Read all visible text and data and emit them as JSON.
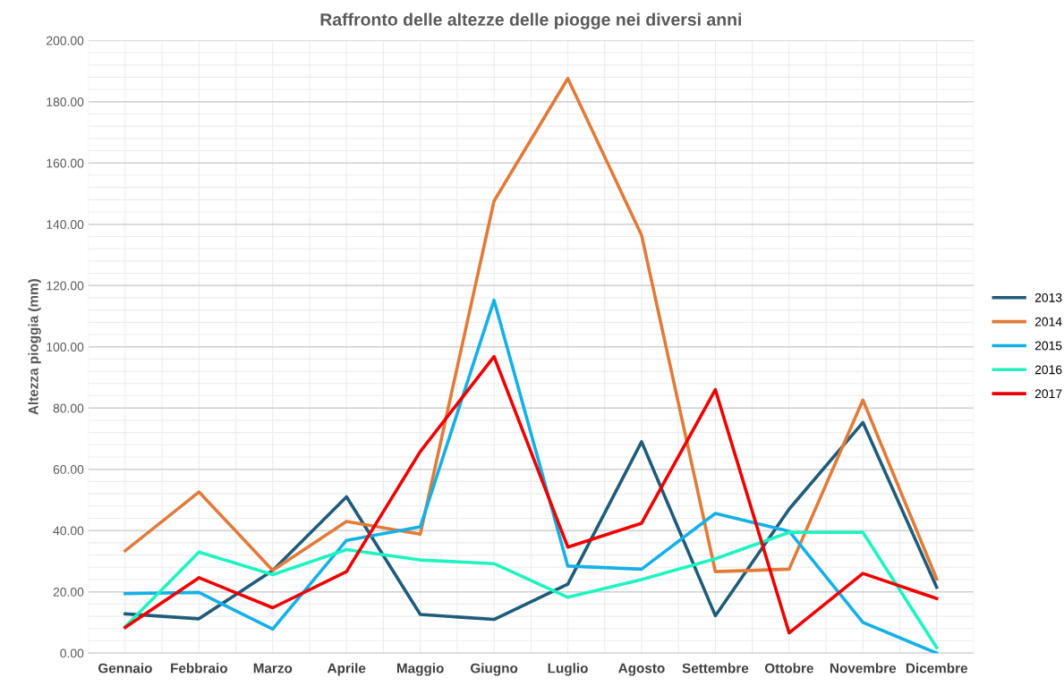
{
  "chart_data": {
    "type": "line",
    "title": "Raffronto delle altezze delle piogge nei diversi anni",
    "ylabel": "Altezza pioggia (mm)",
    "categories": [
      "Gennaio",
      "Febbraio",
      "Marzo",
      "Aprile",
      "Maggio",
      "Giugno",
      "Luglio",
      "Agosto",
      "Settembre",
      "Ottobre",
      "Novembre",
      "Dicembre"
    ],
    "series": [
      {
        "name": "2013",
        "color": "#1f5c7a",
        "values": [
          12.8,
          11.2,
          27,
          51,
          12.6,
          11,
          22.5,
          69,
          12.2,
          47,
          75.3,
          21.5
        ]
      },
      {
        "name": "2014",
        "color": "#e07b39",
        "values": [
          33.4,
          52.6,
          27,
          43,
          38.8,
          147.6,
          187.6,
          136.4,
          26.6,
          27.4,
          82.6,
          24.2
        ]
      },
      {
        "name": "2015",
        "color": "#14b0e6",
        "values": [
          19.4,
          19.8,
          7.8,
          36.8,
          41.2,
          115.2,
          28.4,
          27.4,
          45.6,
          39.8,
          10,
          0
        ]
      },
      {
        "name": "2016",
        "color": "#1ef4c0",
        "values": [
          8.6,
          33,
          25.6,
          33.8,
          30.4,
          29.2,
          18.2,
          24,
          30.8,
          39.4,
          39.4,
          1.8
        ]
      },
      {
        "name": "2017",
        "color": "#ee0000",
        "values": [
          8.4,
          24.6,
          14.8,
          26.6,
          65.8,
          96.8,
          34.6,
          42.4,
          86,
          6.6,
          26,
          17.8
        ]
      }
    ],
    "ylim": [
      0,
      200
    ],
    "yticks": [
      {
        "value": 0,
        "label": "0.00"
      },
      {
        "value": 20,
        "label": "20.00"
      },
      {
        "value": 40,
        "label": "40.00"
      },
      {
        "value": 60,
        "label": "60.00"
      },
      {
        "value": 80,
        "label": "80.00"
      },
      {
        "value": 100,
        "label": "100.00"
      },
      {
        "value": 120,
        "label": "120.00"
      },
      {
        "value": 140,
        "label": "140.00"
      },
      {
        "value": 160,
        "label": "160.00"
      },
      {
        "value": 180,
        "label": "180.00"
      },
      {
        "value": 200,
        "label": "200.00"
      }
    ],
    "grid": true,
    "legend": "right",
    "marker": "none",
    "line_style": "solid"
  }
}
